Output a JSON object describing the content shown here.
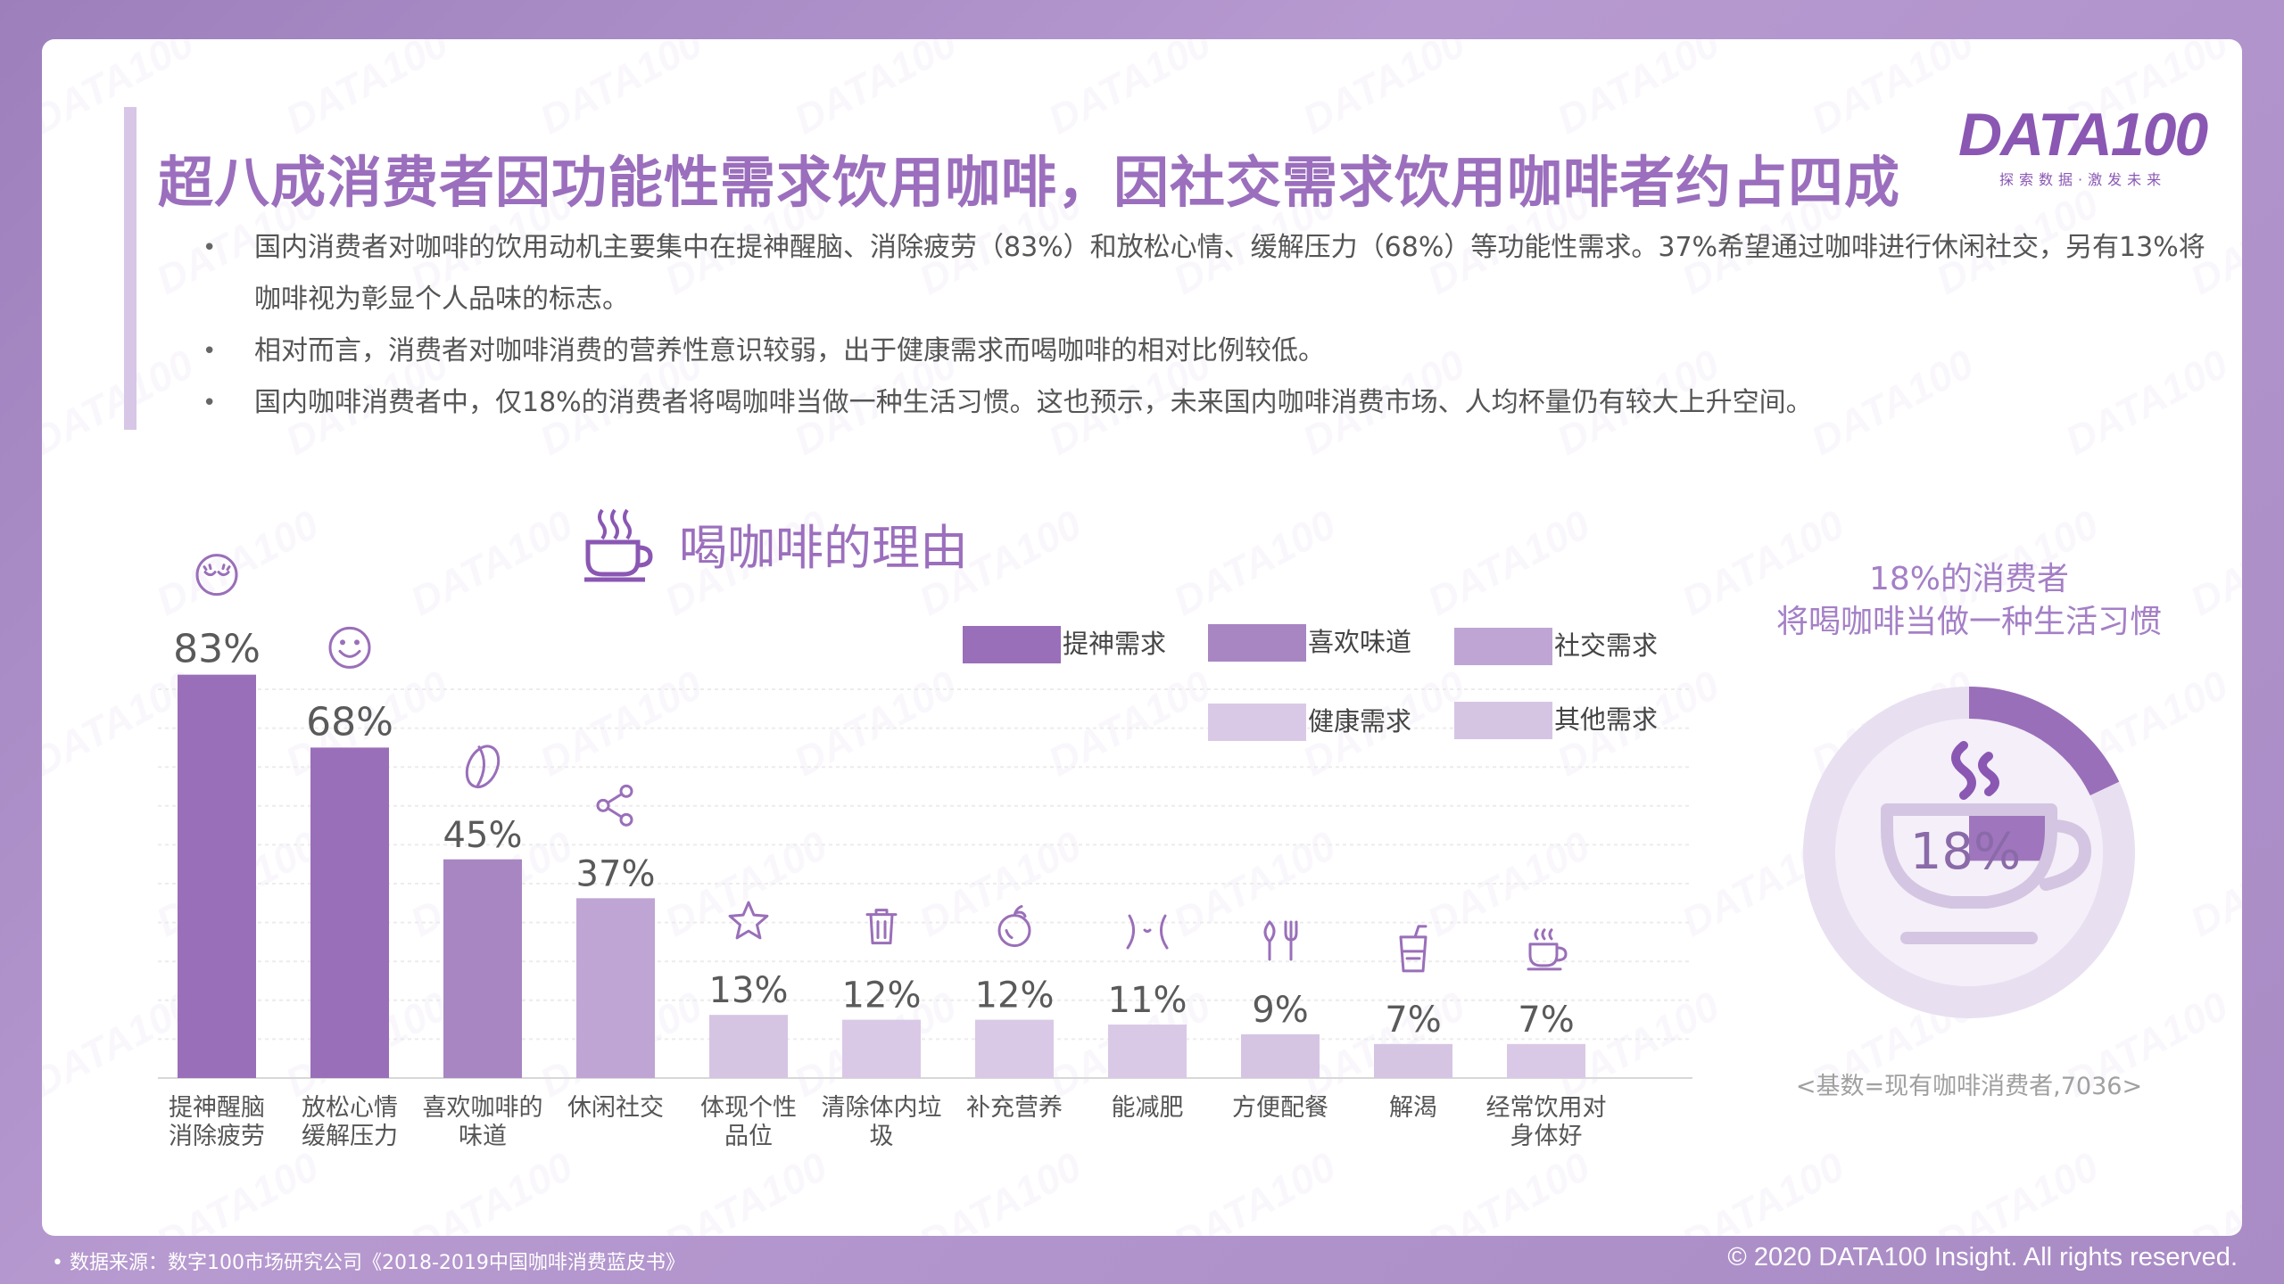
{
  "header": {
    "title": "超八成消费者因功能性需求饮用咖啡，因社交需求饮用咖啡者约占四成",
    "logo_text": "DATA100",
    "logo_tagline": "探索数据·激发未来"
  },
  "bullets": [
    "国内消费者对咖啡的饮用动机主要集中在提神醒脑、消除疲劳（83%）和放松心情、缓解压力（68%）等功能性需求。37%希望通过咖啡进行休闲社交，另有13%将咖啡视为彰显个人品味的标志。",
    "相对而言，消费者对咖啡消费的营养性意识较弱，出于健康需求而喝咖啡的相对比例较低。",
    "国内咖啡消费者中，仅18%的消费者将喝咖啡当做一种生活习惯。这也预示，未来国内咖啡消费市场、人均杯量仍有较大上升空间。"
  ],
  "chart_heading": "喝咖啡的理由",
  "chart_data": [
    {
      "type": "bar",
      "categories": [
        "提神醒脑\n消除疲劳",
        "放松心情\n缓解压力",
        "喜欢咖啡的\n味道",
        "休闲社交",
        "体现个性\n品位",
        "清除体内垃\n圾",
        "补充营养",
        "能减肥",
        "方便配餐",
        "解渴",
        "经常饮用对\n身体好"
      ],
      "values": [
        83,
        68,
        45,
        37,
        13,
        12,
        12,
        11,
        9,
        7,
        7
      ],
      "value_labels": [
        "83%",
        "68%",
        "45%",
        "37%",
        "13%",
        "12%",
        "12%",
        "11%",
        "9%",
        "7%",
        "7%"
      ],
      "groups": [
        "提神需求",
        "提神需求",
        "喜欢味道",
        "社交需求",
        "其他需求",
        "健康需求",
        "健康需求",
        "健康需求",
        "其他需求",
        "其他需求",
        "健康需求"
      ],
      "icons": [
        "sleepy-face-icon",
        "smile-face-icon",
        "coffee-bean-icon",
        "share-icon",
        "star-icon",
        "trash-icon",
        "apple-icon",
        "waist-icon",
        "utensils-icon",
        "drink-cup-icon",
        "coffee-cup-icon"
      ],
      "legend": [
        {
          "name": "提神需求",
          "color": "#9a6fb9"
        },
        {
          "name": "喜欢味道",
          "color": "#a886c2"
        },
        {
          "name": "社交需求",
          "color": "#bfa5d4"
        },
        {
          "name": "健康需求",
          "color": "#d9c9e6"
        },
        {
          "name": "其他需求",
          "color": "#d5c5e3"
        }
      ],
      "ylim": [
        0,
        100
      ],
      "grid": true,
      "legend_position": "top-right"
    },
    {
      "type": "pie",
      "values": [
        18,
        82
      ],
      "center_label": "18%",
      "colors": [
        "#9a6fb9",
        "#e8dff0"
      ],
      "caption": [
        "18%的消费者",
        "将喝咖啡当做一种生活习惯"
      ],
      "base_note": "<基数=现有咖啡消费者,7036>"
    }
  ],
  "footer": {
    "source": "• 数据来源：数字100市场研究公司《2018-2019中国咖啡消费蓝皮书》",
    "copyright": "© 2020 DATA100 Insight. All rights reserved."
  }
}
